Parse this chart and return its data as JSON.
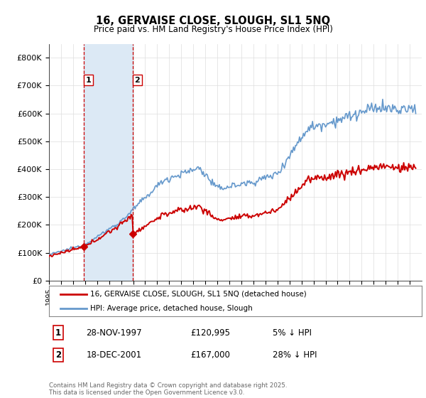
{
  "title": "16, GERVAISE CLOSE, SLOUGH, SL1 5NQ",
  "subtitle": "Price paid vs. HM Land Registry's House Price Index (HPI)",
  "ylim": [
    0,
    850000
  ],
  "yticks": [
    0,
    100000,
    200000,
    300000,
    400000,
    500000,
    600000,
    700000,
    800000
  ],
  "ytick_labels": [
    "£0",
    "£100K",
    "£200K",
    "£300K",
    "£400K",
    "£500K",
    "£600K",
    "£700K",
    "£800K"
  ],
  "hpi_color": "#6699cc",
  "price_color": "#cc0000",
  "vline_color": "#cc0000",
  "span_color": "#dce9f5",
  "sale1_date": 1997.916,
  "sale1_price": 120995,
  "sale2_date": 2001.958,
  "sale2_price": 167000,
  "legend_line1": "16, GERVAISE CLOSE, SLOUGH, SL1 5NQ (detached house)",
  "legend_line2": "HPI: Average price, detached house, Slough",
  "table_row1": [
    "1",
    "28-NOV-1997",
    "£120,995",
    "5% ↓ HPI"
  ],
  "table_row2": [
    "2",
    "18-DEC-2001",
    "£167,000",
    "28% ↓ HPI"
  ],
  "footnote": "Contains HM Land Registry data © Crown copyright and database right 2025.\nThis data is licensed under the Open Government Licence v3.0.",
  "background_color": "#ffffff",
  "grid_color": "#dddddd"
}
